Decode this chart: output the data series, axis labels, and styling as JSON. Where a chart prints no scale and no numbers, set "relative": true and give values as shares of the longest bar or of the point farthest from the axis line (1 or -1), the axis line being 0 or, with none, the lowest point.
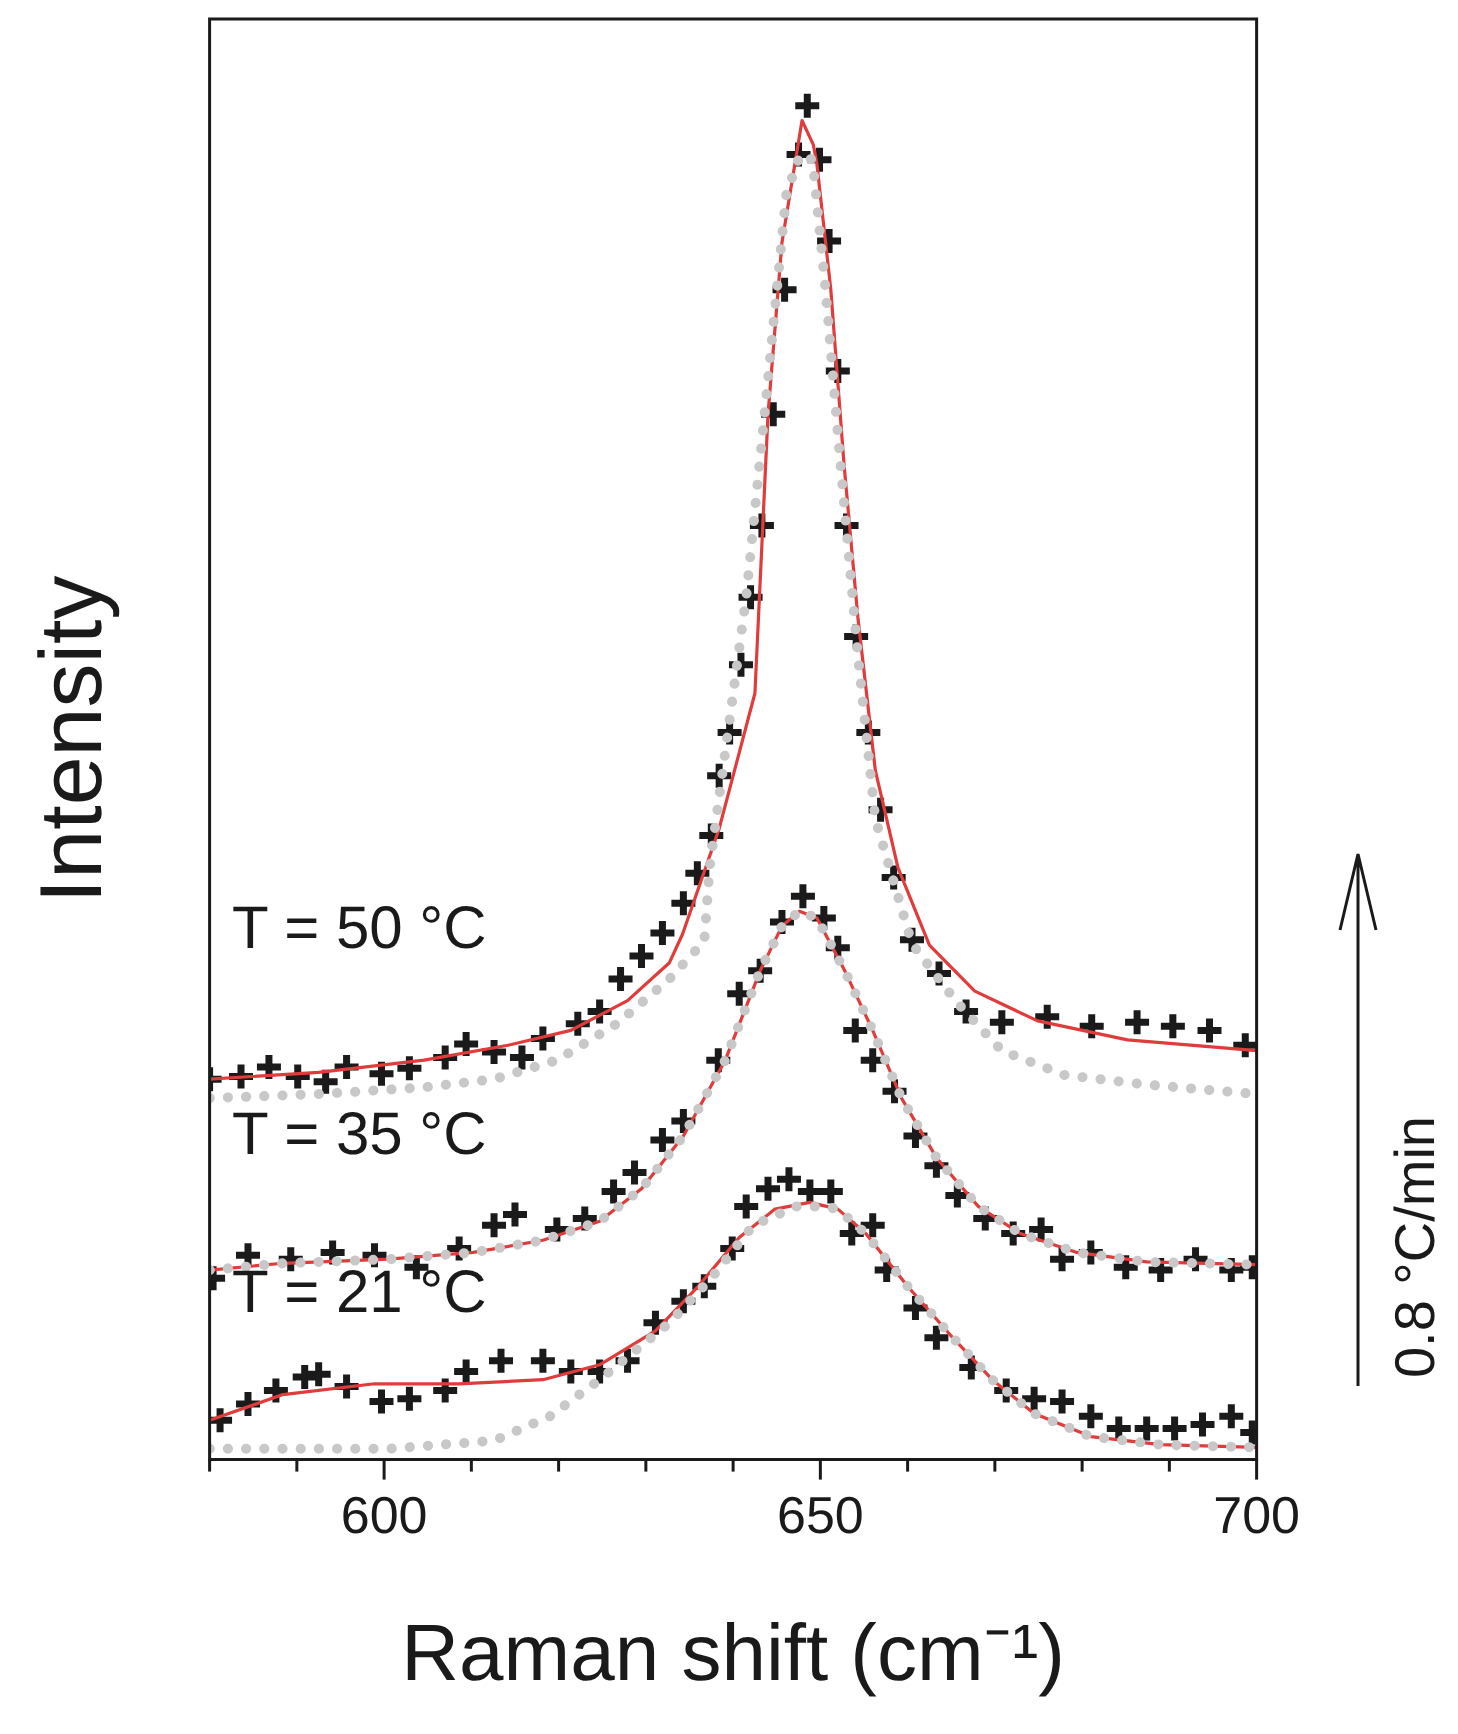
{
  "chart_data": {
    "type": "line",
    "relative": true,
    "xlabel": "Raman shift (cm⁻¹)",
    "ylabel": "Intensity",
    "xlim": [
      580,
      700
    ],
    "xticks": [
      {
        "value": 580,
        "label": null
      },
      {
        "value": 590,
        "label": null
      },
      600,
      {
        "value": 610,
        "label": null
      },
      {
        "value": 620,
        "label": null
      },
      {
        "value": 630,
        "label": null
      },
      {
        "value": 640,
        "label": null
      },
      650,
      {
        "value": 660,
        "label": null
      },
      {
        "value": 670,
        "label": null
      },
      {
        "value": 680,
        "label": null
      },
      {
        "value": 690,
        "label": null
      },
      700
    ],
    "grid": false,
    "legend": false,
    "annotations": [
      "T = 50 °C",
      "T = 35 °C",
      "T = 21 °C",
      "0.8 °C/min"
    ],
    "series": [
      {
        "type": "line",
        "color": "#c8c8c8",
        "line_style": "dotted",
        "marker": "none",
        "x": [
          580,
          592.5,
          604.6,
          612.6,
          619.8,
          626.7,
          632.7,
          636.7,
          637.3,
          641.5,
          643.6,
          646.1,
          647.7,
          649.1,
          650.6,
          652.2,
          654.3,
          656.3,
          660.5,
          665.6,
          670.8,
          678,
          687.3,
          700
        ],
        "values": [
          0.267,
          0.27,
          0.275,
          0.281,
          0.295,
          0.322,
          0.355,
          0.383,
          0.437,
          0.637,
          0.772,
          0.935,
          0.964,
          0.96,
          0.864,
          0.743,
          0.594,
          0.473,
          0.381,
          0.338,
          0.302,
          0.284,
          0.277,
          0.27
        ]
      },
      {
        "type": "line",
        "color": "#c8c8c8",
        "line_style": "dotted",
        "marker": "none",
        "x": [
          580,
          588.4,
          600.5,
          610.2,
          618.2,
          624.7,
          629.5,
          634.3,
          639.1,
          643.1,
          645.6,
          647.6,
          649.6,
          652.8,
          656,
          659.3,
          663.3,
          668.1,
          672.9,
          679.4,
          687.4,
          700
        ],
        "values": [
          0.14,
          0.145,
          0.148,
          0.153,
          0.162,
          0.176,
          0.2,
          0.239,
          0.295,
          0.361,
          0.394,
          0.405,
          0.4,
          0.361,
          0.317,
          0.267,
          0.223,
          0.187,
          0.167,
          0.153,
          0.146,
          0.144
        ]
      },
      {
        "type": "line",
        "color": "#c8c8c8",
        "line_style": "dotted",
        "marker": "none",
        "x": [
          580,
          600.5,
          612.6,
          619,
          624.7,
          632.7,
          637.5,
          642.3,
          647.2,
          650.4,
          652,
          655.2,
          660,
          664.9,
          669.7,
          674.5,
          681,
          689,
          700
        ],
        "values": [
          0.008,
          0.008,
          0.014,
          0.032,
          0.059,
          0.101,
          0.134,
          0.173,
          0.187,
          0.187,
          0.185,
          0.167,
          0.128,
          0.092,
          0.059,
          0.034,
          0.017,
          0.011,
          0.009
        ]
      },
      {
        "type": "line",
        "color": "#e03c3c",
        "line_style": "solid",
        "marker": "none",
        "x": [
          580,
          592.5,
          604.6,
          614.2,
          621.4,
          627.9,
          632.7,
          634.2,
          638.4,
          642.5,
          644,
          645.6,
          647.9,
          649.2,
          649.6,
          651.2,
          652.7,
          654.3,
          656.3,
          658.9,
          662.5,
          667.7,
          674.9,
          685.2,
          700
        ],
        "values": [
          0.281,
          0.286,
          0.295,
          0.306,
          0.317,
          0.339,
          0.367,
          0.388,
          0.466,
          0.566,
          0.772,
          0.899,
          0.989,
          0.971,
          0.957,
          0.864,
          0.736,
          0.622,
          0.509,
          0.437,
          0.38,
          0.346,
          0.324,
          0.31,
          0.302
        ]
      },
      {
        "type": "line",
        "color": "#e03c3c",
        "line_style": "solid",
        "marker": "none",
        "x": [
          580,
          588.4,
          600.5,
          610.2,
          618.2,
          624.7,
          629.5,
          634.3,
          639.1,
          643.1,
          645.6,
          647.6,
          649.6,
          652.8,
          656,
          659.3,
          663.3,
          668.1,
          672.9,
          679.4,
          687.4,
          700
        ],
        "values": [
          0.14,
          0.145,
          0.148,
          0.153,
          0.162,
          0.176,
          0.2,
          0.239,
          0.295,
          0.361,
          0.394,
          0.405,
          0.4,
          0.361,
          0.317,
          0.267,
          0.223,
          0.187,
          0.167,
          0.153,
          0.146,
          0.144
        ]
      },
      {
        "type": "line",
        "color": "#e03c3c",
        "line_style": "solid",
        "marker": "none",
        "x": [
          580,
          588.4,
          598.9,
          608.6,
          618.2,
          624.7,
          631.1,
          636,
          640.7,
          644.8,
          648.8,
          652,
          655.2,
          660,
          664.9,
          669.7,
          674.5,
          681,
          689,
          700
        ],
        "values": [
          0.029,
          0.048,
          0.056,
          0.056,
          0.059,
          0.07,
          0.095,
          0.128,
          0.164,
          0.185,
          0.19,
          0.185,
          0.167,
          0.128,
          0.092,
          0.059,
          0.034,
          0.017,
          0.011,
          0.009
        ]
      },
      {
        "type": "scatter",
        "color": "#1a1a1a",
        "marker": "cross",
        "x": [
          580,
          583.6,
          586.8,
          590.1,
          593.3,
          595.7,
          599.7,
          602.9,
          607,
          609.4,
          612.6,
          615.8,
          618.2,
          622.2,
          624.7,
          627.1,
          629.5,
          631.9,
          634.3,
          635.9,
          637.5,
          638.4,
          639.6,
          640.9,
          642,
          643.3,
          644.6,
          645.9,
          647.5,
          648.5,
          649.9,
          651,
          652,
          653,
          654.1,
          655.5,
          656.9,
          658.4,
          660.5,
          663.6,
          666.7,
          670.8,
          676,
          681.1,
          686.3,
          690.4,
          694.6,
          698.7
        ],
        "values": [
          0.281,
          0.283,
          0.29,
          0.283,
          0.279,
          0.29,
          0.285,
          0.289,
          0.297,
          0.307,
          0.301,
          0.297,
          0.311,
          0.322,
          0.331,
          0.355,
          0.372,
          0.389,
          0.411,
          0.433,
          0.461,
          0.505,
          0.537,
          0.587,
          0.637,
          0.69,
          0.772,
          0.864,
          0.964,
          1,
          0.96,
          0.9,
          0.804,
          0.69,
          0.608,
          0.537,
          0.48,
          0.43,
          0.384,
          0.359,
          0.331,
          0.323,
          0.327,
          0.32,
          0.323,
          0.32,
          0.317,
          0.306
        ]
      },
      {
        "type": "scatter",
        "color": "#1a1a1a",
        "marker": "cross",
        "x": [
          580.4,
          584.4,
          589.3,
          594.1,
          598.9,
          603.7,
          608.6,
          612.6,
          615,
          619.8,
          623,
          626.3,
          628.7,
          631.9,
          634.3,
          638.3,
          640.7,
          643.1,
          645.6,
          648,
          650.4,
          652,
          654,
          656,
          658.5,
          660.9,
          663.3,
          665.7,
          668.9,
          672.1,
          675.3,
          677.7,
          681,
          685,
          689,
          693,
          697.1,
          699.5
        ],
        "values": [
          0.134,
          0.151,
          0.148,
          0.153,
          0.151,
          0.142,
          0.156,
          0.173,
          0.181,
          0.17,
          0.178,
          0.198,
          0.212,
          0.236,
          0.25,
          0.295,
          0.344,
          0.361,
          0.397,
          0.416,
          0.4,
          0.378,
          0.317,
          0.295,
          0.272,
          0.239,
          0.217,
          0.195,
          0.178,
          0.167,
          0.17,
          0.148,
          0.153,
          0.142,
          0.14,
          0.148,
          0.14,
          0.142
        ]
      },
      {
        "type": "scatter",
        "color": "#1a1a1a",
        "marker": "cross",
        "x": [
          581.2,
          584.4,
          587.6,
          590.9,
          592.5,
          595.7,
          599.7,
          602.9,
          607,
          609.4,
          613.4,
          618.2,
          621.4,
          624.7,
          627.9,
          631.1,
          634.3,
          636.7,
          639.9,
          641.5,
          644,
          646.4,
          648.8,
          651.2,
          653.6,
          656,
          657.6,
          660.9,
          663.3,
          667.3,
          671.3,
          674.5,
          677.7,
          681,
          684.2,
          687.4,
          690.6,
          693.8,
          697.1,
          699.5
        ],
        "values": [
          0.029,
          0.041,
          0.051,
          0.061,
          0.063,
          0.054,
          0.043,
          0.045,
          0.051,
          0.065,
          0.073,
          0.073,
          0.065,
          0.065,
          0.073,
          0.101,
          0.117,
          0.128,
          0.156,
          0.187,
          0.2,
          0.207,
          0.198,
          0.198,
          0.167,
          0.173,
          0.14,
          0.112,
          0.09,
          0.068,
          0.051,
          0.045,
          0.043,
          0.032,
          0.023,
          0.023,
          0.023,
          0.026,
          0.032,
          0.02
        ]
      }
    ]
  }
}
